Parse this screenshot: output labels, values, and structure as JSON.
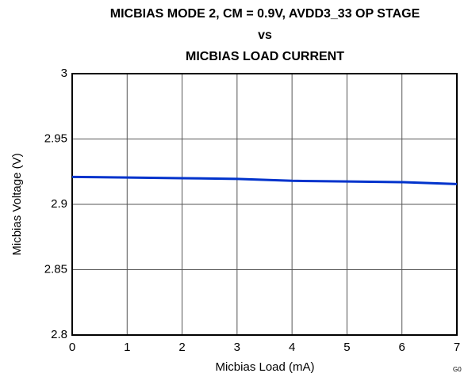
{
  "chart_data": {
    "type": "line",
    "title": [
      "MICBIAS MODE 2, CM = 0.9V, AVDD3_33 OP STAGE",
      "vs",
      "MICBIAS LOAD CURRENT"
    ],
    "x_label": "Micbias Load (mA)",
    "y_label": "Micbias Voltage (V)",
    "annotation": "G0",
    "x": [
      0,
      1,
      2,
      3,
      4,
      5,
      6,
      7
    ],
    "series": [
      {
        "color": "#0033cc",
        "values": [
          2.921,
          2.9205,
          2.92,
          2.9195,
          2.918,
          2.9175,
          2.917,
          2.9155
        ]
      }
    ],
    "xlim": [
      0,
      7
    ],
    "xticks": [
      0,
      1,
      2,
      3,
      4,
      5,
      6,
      7
    ],
    "ylim": [
      2.8,
      3
    ],
    "yticks": [
      2.8,
      2.85,
      2.9,
      2.95,
      3
    ],
    "grid": true
  }
}
